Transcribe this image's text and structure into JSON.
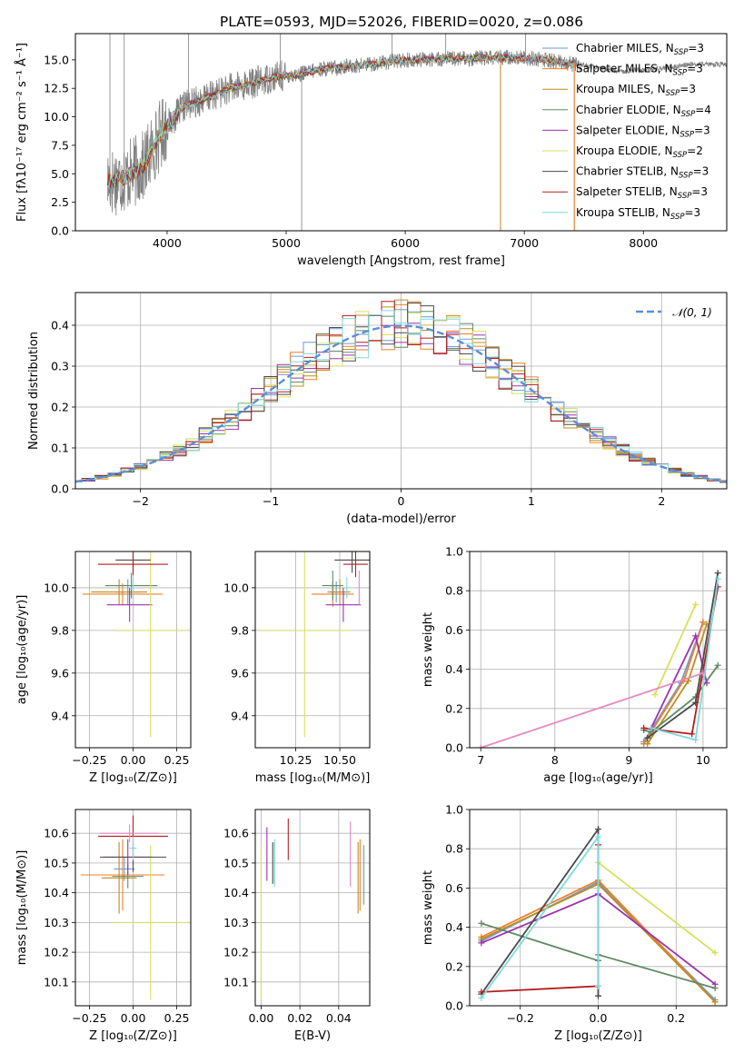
{
  "title": "PLATE=0593, MJD=52026, FIBERID=0020, z=0.086",
  "colors": {
    "Chabrier MILES": "#6b9ad6",
    "Salpeter MILES": "#f07f2a",
    "Kroupa MILES": "#bf8d1f",
    "Chabrier ELODIE": "#5f8b63",
    "Salpeter ELODIE": "#9b32b0",
    "Kroupa ELODIE": "#d6e15a",
    "Chabrier STELIB": "#4a4a4a",
    "Salpeter STELIB": "#b51d1d",
    "Kroupa STELIB": "#7fd9dc",
    "extra_pink": "#e889c4",
    "data_spectrum": "#808080",
    "normal_curve": "#5a8fd8"
  },
  "chart_data": [
    {
      "id": "spectrum",
      "type": "line",
      "xlabel": "wavelength [Angstrom, rest frame]",
      "ylabel": "Flux [fλ10⁻¹⁷ erg cm⁻² s⁻¹ Å⁻¹]",
      "xlim": [
        3230,
        8700
      ],
      "ylim": [
        0,
        17.3
      ],
      "xticks": [
        "4000",
        "5000",
        "6000",
        "7000",
        "8000"
      ],
      "xtick_values": [
        4000,
        5000,
        6000,
        7000,
        8000
      ],
      "yticks": [
        "0.0",
        "2.5",
        "5.0",
        "7.5",
        "10.0",
        "12.5",
        "15.0"
      ],
      "ytick_values": [
        0,
        2.5,
        5,
        7.5,
        10,
        12.5,
        15
      ],
      "grid": false,
      "legend_position": "top-right",
      "spectrum_shape": [
        [
          3500,
          4.3
        ],
        [
          3650,
          4.7
        ],
        [
          3800,
          5.6
        ],
        [
          3950,
          8.6
        ],
        [
          4050,
          9.8
        ],
        [
          4150,
          11.0
        ],
        [
          4300,
          11.5
        ],
        [
          4500,
          12.4
        ],
        [
          4700,
          12.9
        ],
        [
          4900,
          13.5
        ],
        [
          5100,
          13.7
        ],
        [
          5300,
          14.2
        ],
        [
          5500,
          14.4
        ],
        [
          5700,
          14.6
        ],
        [
          5900,
          14.9
        ],
        [
          6100,
          15.0
        ],
        [
          6300,
          15.1
        ],
        [
          6500,
          15.1
        ],
        [
          6700,
          15.2
        ],
        [
          6900,
          15.2
        ],
        [
          7100,
          15.1
        ],
        [
          7300,
          14.8
        ],
        [
          7500,
          14.5
        ],
        [
          7800,
          14.0
        ],
        [
          8100,
          14.2
        ],
        [
          8400,
          14.6
        ],
        [
          8700,
          14.6
        ]
      ],
      "legend": [
        {
          "label": "Chabrier MILES, N",
          "sub": "SSP",
          "tail": "=3"
        },
        {
          "label": "Salpeter MILES, N",
          "sub": "SSP",
          "tail": "=3"
        },
        {
          "label": "Kroupa MILES, N",
          "sub": "SSP",
          "tail": "=3"
        },
        {
          "label": "Chabrier ELODIE, N",
          "sub": "SSP",
          "tail": "=4"
        },
        {
          "label": "Salpeter ELODIE, N",
          "sub": "SSP",
          "tail": "=3"
        },
        {
          "label": "Kroupa ELODIE, N",
          "sub": "SSP",
          "tail": "=2"
        },
        {
          "label": "Chabrier STELIB, N",
          "sub": "SSP",
          "tail": "=3"
        },
        {
          "label": "Salpeter STELIB, N",
          "sub": "SSP",
          "tail": "=3"
        },
        {
          "label": "Kroupa STELIB, N",
          "sub": "SSP",
          "tail": "=3"
        }
      ]
    },
    {
      "id": "residuals",
      "type": "line",
      "xlabel": "(data-model)/error",
      "ylabel": "Normed distribution",
      "xlim": [
        -2.5,
        2.5
      ],
      "ylim": [
        0,
        0.48
      ],
      "xticks": [
        "−2",
        "−1",
        "0",
        "1",
        "2"
      ],
      "xtick_values": [
        -2,
        -1,
        0,
        1,
        2
      ],
      "yticks": [
        "0.0",
        "0.1",
        "0.2",
        "0.3",
        "0.4"
      ],
      "ytick_values": [
        0,
        0.1,
        0.2,
        0.3,
        0.4
      ],
      "grid": true,
      "legend_position": "top-right",
      "legend": [
        {
          "label": "𝒩(0, 1)"
        }
      ],
      "bin_width": 0.1
    },
    {
      "id": "age_vs_Z",
      "type": "scatter",
      "xlabel": "Z [log₁₀(Z/Z⊙)]",
      "ylabel": "age  [log₁₀(age/yr)]",
      "xlim": [
        -0.33,
        0.33
      ],
      "ylim": [
        9.25,
        10.17
      ],
      "xticks": [
        "−0.25",
        "0.00",
        "0.25"
      ],
      "xtick_values": [
        -0.25,
        0,
        0.25
      ],
      "yticks": [
        "9.4",
        "9.6",
        "9.8",
        "10.0"
      ],
      "ytick_values": [
        9.4,
        9.6,
        9.8,
        10.0
      ],
      "grid": true,
      "points": [
        {
          "model": "Chabrier MILES",
          "x": -0.03,
          "xerr": 0.07,
          "y": 9.98,
          "yerr": 0.06
        },
        {
          "model": "Salpeter MILES",
          "x": -0.06,
          "xerr": 0.23,
          "y": 9.97,
          "yerr": 0.05
        },
        {
          "model": "Kroupa MILES",
          "x": -0.08,
          "xerr": 0.16,
          "y": 9.98,
          "yerr": 0.06
        },
        {
          "model": "Chabrier ELODIE",
          "x": -0.01,
          "xerr": 0.15,
          "y": 10.01,
          "yerr": 0.06
        },
        {
          "model": "Salpeter ELODIE",
          "x": -0.02,
          "xerr": 0.13,
          "y": 9.92,
          "yerr": 0.08
        },
        {
          "model": "Kroupa ELODIE",
          "x": 0.1,
          "xerr": 0.2,
          "y": 9.8,
          "yerr": 0.5
        },
        {
          "model": "Chabrier STELIB",
          "x": 0.0,
          "xerr": 0.1,
          "y": 10.13,
          "yerr": 0.06
        },
        {
          "model": "Salpeter STELIB",
          "x": 0.0,
          "xerr": 0.2,
          "y": 10.11,
          "yerr": 0.05
        },
        {
          "model": "Kroupa STELIB",
          "x": 0.0,
          "xerr": 0.02,
          "y": 10.0,
          "yerr": 0.04
        }
      ]
    },
    {
      "id": "age_vs_mass",
      "type": "scatter",
      "xlabel": "mass [log₁₀(M/M⊙)]",
      "ylabel": "",
      "xlim": [
        10.02,
        10.67
      ],
      "ylim": [
        9.25,
        10.17
      ],
      "xticks": [
        "10.25",
        "10.50"
      ],
      "xtick_values": [
        10.25,
        10.5
      ],
      "yticks": [
        "9.4",
        "9.6",
        "9.8",
        "10.0"
      ],
      "ytick_values": [
        9.4,
        9.6,
        9.8,
        10.0
      ],
      "grid": true,
      "points": [
        {
          "model": "Chabrier MILES",
          "x": 10.48,
          "xerr": 0.05,
          "y": 9.98,
          "yerr": 0.05
        },
        {
          "model": "Salpeter MILES",
          "x": 10.46,
          "xerr": 0.12,
          "y": 9.97,
          "yerr": 0.06
        },
        {
          "model": "Kroupa MILES",
          "x": 10.5,
          "xerr": 0.06,
          "y": 9.98,
          "yerr": 0.06
        },
        {
          "model": "Chabrier ELODIE",
          "x": 10.46,
          "xerr": 0.06,
          "y": 10.01,
          "yerr": 0.07
        },
        {
          "model": "Salpeter ELODIE",
          "x": 10.52,
          "xerr": 0.1,
          "y": 9.92,
          "yerr": 0.08
        },
        {
          "model": "Kroupa ELODIE",
          "x": 10.3,
          "xerr": 0.26,
          "y": 9.8,
          "yerr": 0.5
        },
        {
          "model": "Chabrier STELIB",
          "x": 10.57,
          "xerr": 0.1,
          "y": 10.13,
          "yerr": 0.06
        },
        {
          "model": "Salpeter STELIB",
          "x": 10.59,
          "xerr": 0.07,
          "y": 10.11,
          "yerr": 0.06
        },
        {
          "model": "Kroupa STELIB",
          "x": 10.54,
          "xerr": 0.02,
          "y": 10.0,
          "yerr": 0.05
        },
        {
          "model": "extra_pink",
          "x": 10.61,
          "xerr": 0.0,
          "y": 10.0,
          "yerr": 0.08
        }
      ]
    },
    {
      "id": "mass_weight_vs_age",
      "type": "line",
      "xlabel": "age  [log₁₀(age/yr)]",
      "ylabel": "mass weight",
      "xlim": [
        6.85,
        10.32
      ],
      "ylim": [
        0,
        1
      ],
      "xticks": [
        "7",
        "8",
        "9",
        "10"
      ],
      "xtick_values": [
        7,
        8,
        9,
        10
      ],
      "yticks": [
        "0.0",
        "0.2",
        "0.4",
        "0.6",
        "0.8",
        "1.0"
      ],
      "ytick_values": [
        0,
        0.2,
        0.4,
        0.6,
        0.8,
        1.0
      ],
      "grid": true,
      "series": [
        {
          "model": "Chabrier MILES",
          "x": [
            9.2,
            9.7,
            10.0
          ],
          "y": [
            0.03,
            0.33,
            0.64
          ]
        },
        {
          "model": "Salpeter MILES",
          "x": [
            9.2,
            9.75,
            10.0
          ],
          "y": [
            0.02,
            0.35,
            0.64
          ]
        },
        {
          "model": "Kroupa MILES",
          "x": [
            9.25,
            9.8,
            10.05
          ],
          "y": [
            0.02,
            0.34,
            0.63
          ]
        },
        {
          "model": "Chabrier ELODIE",
          "x": [
            9.2,
            9.3,
            9.9,
            10.2
          ],
          "y": [
            0.09,
            0.08,
            0.26,
            0.42
          ]
        },
        {
          "model": "Salpeter ELODIE",
          "x": [
            9.3,
            9.9,
            10.05
          ],
          "y": [
            0.1,
            0.57,
            0.33
          ]
        },
        {
          "model": "Kroupa ELODIE",
          "x": [
            9.35,
            9.9
          ],
          "y": [
            0.27,
            0.73
          ]
        },
        {
          "model": "Chabrier STELIB",
          "x": [
            9.25,
            9.9,
            10.2
          ],
          "y": [
            0.05,
            0.23,
            0.89
          ]
        },
        {
          "model": "Salpeter STELIB",
          "x": [
            9.2,
            9.85,
            10.2
          ],
          "y": [
            0.1,
            0.07,
            0.82
          ]
        },
        {
          "model": "Kroupa STELIB",
          "x": [
            9.3,
            9.9,
            10.2
          ],
          "y": [
            0.1,
            0.04,
            0.86
          ]
        },
        {
          "model": "extra_pink",
          "x": [
            7.0,
            10.0
          ],
          "y": [
            0.0,
            0.38
          ]
        }
      ]
    },
    {
      "id": "mass_vs_Z",
      "type": "scatter",
      "xlabel": "Z [log₁₀(Z/Z⊙)]",
      "ylabel": "mass [log₁₀(M/M⊙)]",
      "xlim": [
        -0.33,
        0.33
      ],
      "ylim": [
        10.02,
        10.68
      ],
      "xticks": [
        "−0.25",
        "0.00",
        "0.25"
      ],
      "xtick_values": [
        -0.25,
        0,
        0.25
      ],
      "yticks": [
        "10.1",
        "10.2",
        "10.3",
        "10.4",
        "10.5",
        "10.6"
      ],
      "ytick_values": [
        10.1,
        10.2,
        10.3,
        10.4,
        10.5,
        10.6
      ],
      "grid": true,
      "points": [
        {
          "model": "Chabrier MILES",
          "x": -0.05,
          "xerr": 0.06,
          "y": 10.48,
          "yerr": 0.04
        },
        {
          "model": "Salpeter MILES",
          "x": -0.06,
          "xerr": 0.24,
          "y": 10.46,
          "yerr": 0.12
        },
        {
          "model": "Kroupa MILES",
          "x": -0.08,
          "xerr": 0.1,
          "y": 10.45,
          "yerr": 0.12
        },
        {
          "model": "Chabrier ELODIE",
          "x": -0.03,
          "xerr": 0.09,
          "y": 10.455,
          "yerr": 0.04
        },
        {
          "model": "Salpeter ELODIE",
          "x": -0.03,
          "xerr": 0.14,
          "y": 10.52,
          "yerr": 0.06
        },
        {
          "model": "Kroupa ELODIE",
          "x": 0.1,
          "xerr": 0.22,
          "y": 10.3,
          "yerr": 0.26
        },
        {
          "model": "Chabrier STELIB",
          "x": 0.0,
          "xerr": 0.19,
          "y": 10.52,
          "yerr": 0.05
        },
        {
          "model": "Salpeter STELIB",
          "x": 0.0,
          "xerr": 0.2,
          "y": 10.59,
          "yerr": 0.07
        },
        {
          "model": "Kroupa STELIB",
          "x": 0.0,
          "xerr": 0.02,
          "y": 10.55,
          "yerr": 0.04
        },
        {
          "model": "extra_pink",
          "x": -0.02,
          "xerr": 0.17,
          "y": 10.6,
          "yerr": 0.03
        }
      ]
    },
    {
      "id": "mass_vs_ebv",
      "type": "scatter",
      "xlabel": "E(B-V)",
      "ylabel": "",
      "xlim": [
        -0.003,
        0.056
      ],
      "ylim": [
        10.02,
        10.68
      ],
      "xticks": [
        "0.00",
        "0.02",
        "0.04"
      ],
      "xtick_values": [
        0,
        0.02,
        0.04
      ],
      "yticks": [
        "10.1",
        "10.2",
        "10.3",
        "10.4",
        "10.5",
        "10.6"
      ],
      "ytick_values": [
        10.1,
        10.2,
        10.3,
        10.4,
        10.5,
        10.6
      ],
      "grid": true,
      "points": [
        {
          "model": "Chabrier MILES",
          "x": 0.053,
          "y": 10.46,
          "yerr": 0.1
        },
        {
          "model": "Salpeter MILES",
          "x": 0.051,
          "y": 10.46,
          "yerr": 0.12
        },
        {
          "model": "Kroupa MILES",
          "x": 0.05,
          "y": 10.45,
          "yerr": 0.12
        },
        {
          "model": "Chabrier ELODIE",
          "x": 0.007,
          "y": 10.5,
          "yerr": 0.07
        },
        {
          "model": "Salpeter ELODIE",
          "x": 0.003,
          "y": 10.53,
          "yerr": 0.09
        },
        {
          "model": "Kroupa ELODIE",
          "x": 0.0,
          "y": 10.3,
          "yerr": 0.26
        },
        {
          "model": "Chabrier STELIB",
          "x": 0.006,
          "y": 10.5,
          "yerr": 0.07
        },
        {
          "model": "Salpeter STELIB",
          "x": 0.014,
          "y": 10.58,
          "yerr": 0.07
        },
        {
          "model": "Kroupa STELIB",
          "x": 0.007,
          "y": 10.5,
          "yerr": 0.08
        },
        {
          "model": "extra_pink",
          "x": 0.046,
          "y": 10.53,
          "yerr": 0.11
        }
      ]
    },
    {
      "id": "mass_weight_vs_Z",
      "type": "line",
      "xlabel": "Z [log₁₀(Z/Z⊙)]",
      "ylabel": "mass weight",
      "xlim": [
        -0.33,
        0.33
      ],
      "ylim": [
        0,
        1
      ],
      "xticks": [
        "−0.2",
        "0.0",
        "0.2"
      ],
      "xtick_values": [
        -0.2,
        0,
        0.2
      ],
      "yticks": [
        "0.0",
        "0.2",
        "0.4",
        "0.6",
        "0.8",
        "1.0"
      ],
      "ytick_values": [
        0,
        0.2,
        0.4,
        0.6,
        0.8,
        1.0
      ],
      "grid": true,
      "series": [
        {
          "model": "Chabrier MILES",
          "x": [
            -0.3,
            0.0,
            0.3
          ],
          "y": [
            0.33,
            0.63,
            0.03
          ]
        },
        {
          "model": "Salpeter MILES",
          "x": [
            -0.3,
            0.0,
            0.3
          ],
          "y": [
            0.35,
            0.64,
            0.02
          ]
        },
        {
          "model": "Kroupa MILES",
          "x": [
            -0.3,
            0.0,
            0.3
          ],
          "y": [
            0.34,
            0.62,
            0.02
          ]
        },
        {
          "model": "Chabrier ELODIE",
          "x": [
            -0.3,
            0.0,
            0.0,
            0.3
          ],
          "y": [
            0.42,
            0.23,
            0.26,
            0.09
          ]
        },
        {
          "model": "Salpeter ELODIE",
          "x": [
            -0.3,
            0.0,
            0.3
          ],
          "y": [
            0.32,
            0.57,
            0.11
          ]
        },
        {
          "model": "Kroupa ELODIE",
          "x": [
            0.0,
            0.3
          ],
          "y": [
            0.73,
            0.27
          ]
        },
        {
          "model": "Chabrier STELIB",
          "x": [
            -0.3,
            0.0,
            0.0
          ],
          "y": [
            0.06,
            0.9,
            0.05
          ]
        },
        {
          "model": "Salpeter STELIB",
          "x": [
            -0.3,
            0.0,
            0.0
          ],
          "y": [
            0.07,
            0.1,
            0.82
          ]
        },
        {
          "model": "Kroupa STELIB",
          "x": [
            -0.3,
            0.0,
            0.0
          ],
          "y": [
            0.04,
            0.86,
            0.1
          ]
        }
      ]
    }
  ]
}
